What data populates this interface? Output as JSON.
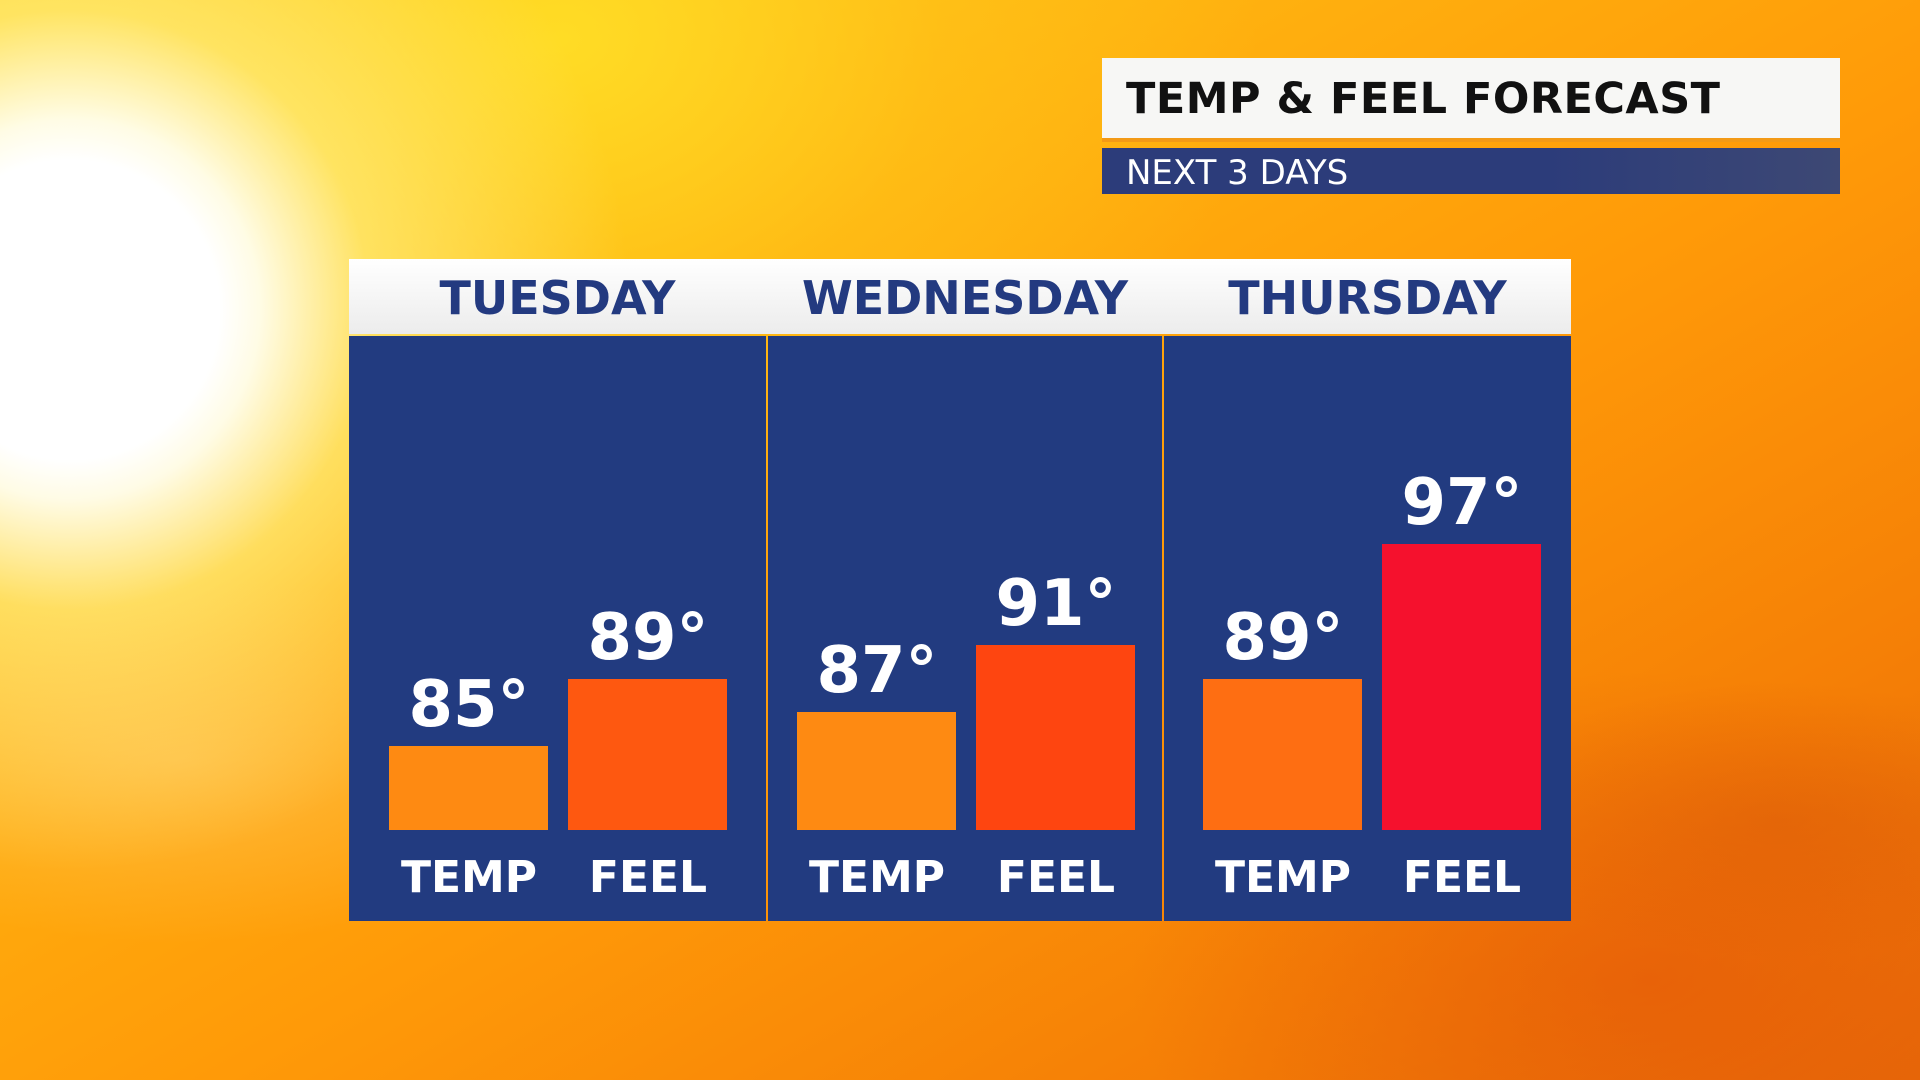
{
  "title": "TEMP & FEEL FORECAST",
  "subtitle": "NEXT 3 DAYS",
  "chart_data": {
    "type": "bar",
    "title": "TEMP & FEEL FORECAST",
    "subtitle": "NEXT 3 DAYS",
    "categories": [
      "TUESDAY",
      "WEDNESDAY",
      "THURSDAY"
    ],
    "series": [
      {
        "name": "TEMP",
        "values": [
          85,
          87,
          89
        ],
        "labels": [
          "85°",
          "87°",
          "89°"
        ],
        "colors": [
          "#fe8a12",
          "#fe8a12",
          "#fe6e12"
        ]
      },
      {
        "name": "FEEL",
        "values": [
          89,
          91,
          97
        ],
        "labels": [
          "89°",
          "91°",
          "97°"
        ],
        "colors": [
          "#fe5810",
          "#fe4510",
          "#f5112d"
        ]
      }
    ],
    "ylim": [
      80,
      100
    ]
  },
  "colors": {
    "panel": "#223b80",
    "header_text": "#233a80",
    "label_text": "#ffffff"
  }
}
